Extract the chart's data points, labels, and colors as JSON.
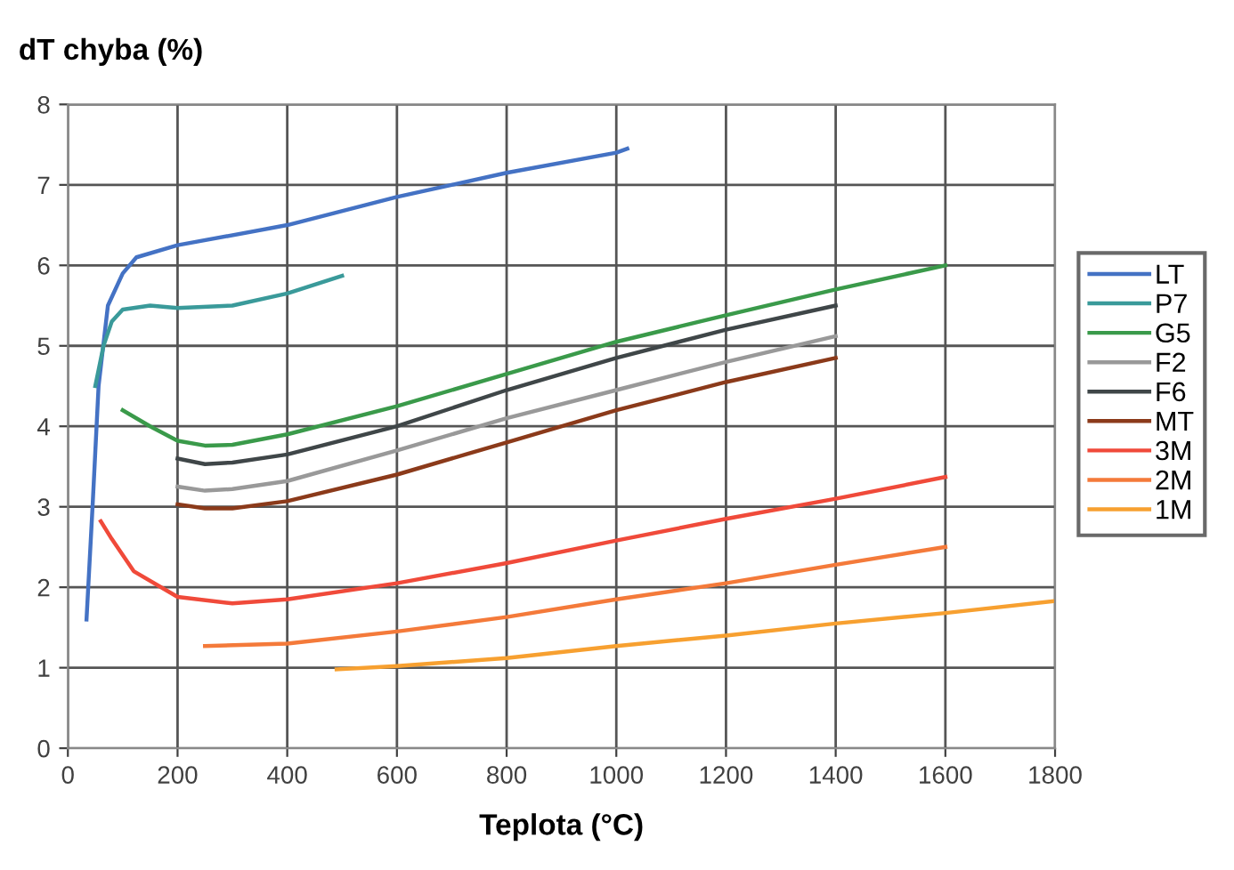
{
  "chart_data": {
    "type": "line",
    "xlabel": "Teplota (°C)",
    "ylabel": "dT chyba (%)",
    "xlim": [
      0,
      1800
    ],
    "xticks": [
      0,
      200,
      400,
      600,
      800,
      1000,
      1200,
      1400,
      1600,
      1800
    ],
    "ylim": [
      0,
      8
    ],
    "yticks": [
      0,
      1,
      2,
      3,
      4,
      5,
      6,
      7,
      8
    ],
    "grid": true,
    "legend": "right",
    "marker": "none",
    "line_style": "solid",
    "series": [
      {
        "name": "LT",
        "color": "#4472c4",
        "x": [
          34,
          45,
          56,
          73,
          100,
          125,
          200,
          400,
          600,
          800,
          1000,
          1020
        ],
        "values": [
          1.6,
          3.0,
          4.5,
          5.5,
          5.9,
          6.1,
          6.25,
          6.5,
          6.85,
          7.15,
          7.4,
          7.45
        ]
      },
      {
        "name": "P7",
        "color": "#3a9a9a",
        "x": [
          50,
          65,
          80,
          100,
          150,
          200,
          300,
          400,
          500
        ],
        "values": [
          4.5,
          5.0,
          5.3,
          5.45,
          5.5,
          5.47,
          5.5,
          5.65,
          5.87
        ]
      },
      {
        "name": "G5",
        "color": "#3a9a4a",
        "x": [
          100,
          150,
          200,
          250,
          300,
          400,
          600,
          800,
          1000,
          1200,
          1400,
          1600
        ],
        "values": [
          4.2,
          4.0,
          3.82,
          3.76,
          3.77,
          3.9,
          4.25,
          4.65,
          5.05,
          5.38,
          5.7,
          6.0
        ]
      },
      {
        "name": "F2",
        "color": "#999999",
        "x": [
          200,
          250,
          300,
          400,
          600,
          800,
          1000,
          1200,
          1400
        ],
        "values": [
          3.25,
          3.2,
          3.22,
          3.32,
          3.7,
          4.1,
          4.45,
          4.8,
          5.12
        ]
      },
      {
        "name": "F6",
        "color": "#3f4648",
        "x": [
          200,
          250,
          300,
          400,
          600,
          800,
          1000,
          1200,
          1400
        ],
        "values": [
          3.6,
          3.53,
          3.55,
          3.65,
          4.0,
          4.45,
          4.85,
          5.2,
          5.5
        ]
      },
      {
        "name": "MT",
        "color": "#8b3a1a",
        "x": [
          200,
          250,
          300,
          400,
          600,
          800,
          1000,
          1200,
          1400
        ],
        "values": [
          3.03,
          2.98,
          2.98,
          3.07,
          3.4,
          3.8,
          4.2,
          4.55,
          4.85
        ]
      },
      {
        "name": "3M",
        "color": "#f04a3a",
        "x": [
          60,
          80,
          120,
          200,
          300,
          400,
          600,
          800,
          1000,
          1200,
          1400,
          1600
        ],
        "values": [
          2.82,
          2.6,
          2.2,
          1.88,
          1.8,
          1.85,
          2.05,
          2.3,
          2.58,
          2.85,
          3.1,
          3.37
        ]
      },
      {
        "name": "2M",
        "color": "#f47a3a",
        "x": [
          250,
          400,
          600,
          800,
          1000,
          1200,
          1400,
          1600
        ],
        "values": [
          1.27,
          1.3,
          1.45,
          1.63,
          1.85,
          2.05,
          2.28,
          2.5
        ]
      },
      {
        "name": "1M",
        "color": "#f7a030",
        "x": [
          490,
          600,
          800,
          1000,
          1200,
          1400,
          1600,
          1800
        ],
        "values": [
          0.98,
          1.02,
          1.12,
          1.27,
          1.4,
          1.55,
          1.68,
          1.83
        ]
      }
    ]
  }
}
